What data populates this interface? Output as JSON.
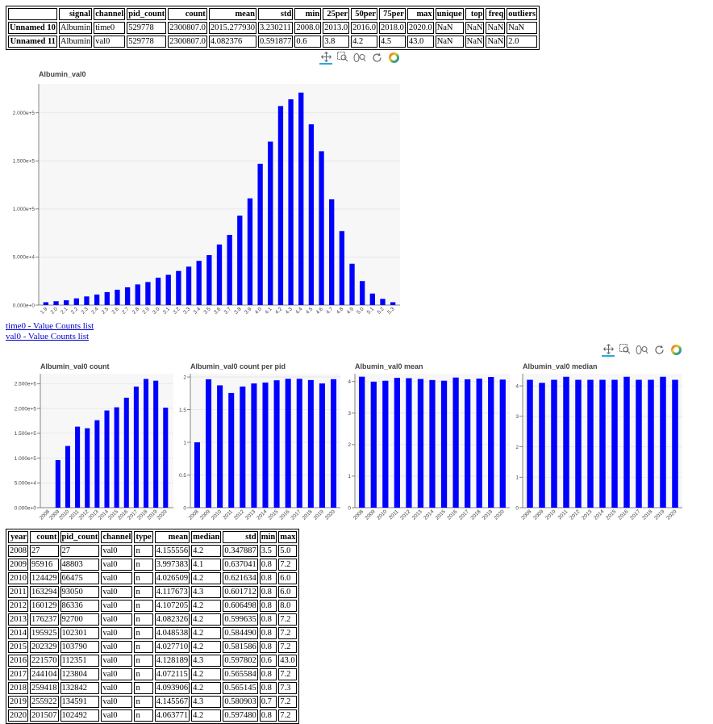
{
  "summary_table": {
    "columns": [
      "",
      "signal",
      "channel",
      "pid_count",
      "count",
      "mean",
      "std",
      "min",
      "25per",
      "50per",
      "75per",
      "max",
      "unique",
      "top",
      "freq",
      "outliers"
    ],
    "rows": [
      [
        "Unnamed 10",
        "Albumin",
        "time0",
        "529778",
        "2300807.0",
        "2015.277930",
        "3.230211",
        "2008.0",
        "2013.0",
        "2016.0",
        "2018.0",
        "2020.0",
        "NaN",
        "NaN",
        "NaN",
        "NaN"
      ],
      [
        "Unnamed 11",
        "Albumin",
        "val0",
        "529778",
        "2300807.0",
        "4.082376",
        "0.591877",
        "0.6",
        "3.8",
        "4.2",
        "4.5",
        "43.0",
        "NaN",
        "NaN",
        "NaN",
        "2.0"
      ]
    ]
  },
  "toolbar": {
    "tools": [
      "pan-icon",
      "box-zoom-icon",
      "wheel-zoom-icon",
      "reset-icon",
      "bokeh-logo-icon"
    ]
  },
  "links": {
    "time0": "time0 - Value Counts list",
    "val0": "val0 - Value Counts list"
  },
  "chart_data": [
    {
      "type": "bar",
      "title": "Albumin_val0",
      "categories": [
        "1.9",
        "2.0",
        "2.1",
        "2.2",
        "2.3",
        "2.4",
        "2.5",
        "2.6",
        "2.7",
        "2.8",
        "2.9",
        "3.0",
        "3.1",
        "3.2",
        "3.3",
        "3.4",
        "3.5",
        "3.6",
        "3.7",
        "3.8",
        "3.9",
        "4.0",
        "4.1",
        "4.2",
        "4.3",
        "4.4",
        "4.5",
        "4.6",
        "4.7",
        "4.8",
        "4.9",
        "5.0",
        "5.1",
        "5.2",
        "5.3"
      ],
      "values": [
        3000,
        4000,
        5000,
        7000,
        9000,
        11000,
        13500,
        16000,
        18500,
        21500,
        24000,
        28500,
        31500,
        35500,
        40000,
        46000,
        52000,
        63000,
        73000,
        93000,
        111000,
        147000,
        170000,
        207000,
        214000,
        221000,
        188000,
        160000,
        110000,
        77000,
        43000,
        25000,
        12000,
        6500,
        3000
      ],
      "ylim": [
        0,
        230000
      ],
      "yticks": [
        "0.000e+0",
        "5.000e+4",
        "1.000e+5",
        "1.500e+5",
        "2.000e+5"
      ],
      "grid": true
    },
    {
      "type": "bar",
      "title": "Albumin_val0  count",
      "categories": [
        "2008",
        "2009",
        "2010",
        "2011",
        "2012",
        "2013",
        "2014",
        "2015",
        "2016",
        "2017",
        "2018",
        "2019",
        "2020"
      ],
      "values": [
        27,
        95916,
        124429,
        163294,
        160129,
        176237,
        195925,
        202329,
        221570,
        244104,
        259418,
        255922,
        201507
      ],
      "ylim": [
        0,
        270000
      ],
      "yticks": [
        "0.000e+0",
        "5.000e+4",
        "1.000e+5",
        "1.500e+5",
        "2.000e+5",
        "2.500e+5"
      ],
      "grid": true
    },
    {
      "type": "bar",
      "title": "Albumin_val0  count per pid",
      "categories": [
        "2008",
        "2009",
        "2010",
        "2011",
        "2012",
        "2013",
        "2014",
        "2015",
        "2016",
        "2017",
        "2018",
        "2019",
        "2020"
      ],
      "values": [
        1.0,
        1.965,
        1.872,
        1.755,
        1.854,
        1.901,
        1.915,
        1.949,
        1.972,
        1.972,
        1.953,
        1.901,
        1.966
      ],
      "ylim": [
        0,
        2.05
      ],
      "yticks": [
        "0",
        "0.5",
        "1",
        "1.5",
        "2"
      ],
      "grid": true
    },
    {
      "type": "bar",
      "title": "Albumin_val0  mean",
      "categories": [
        "2008",
        "2009",
        "2010",
        "2011",
        "2012",
        "2013",
        "2014",
        "2015",
        "2016",
        "2017",
        "2018",
        "2019",
        "2020"
      ],
      "values": [
        4.155556,
        3.997383,
        4.026509,
        4.117673,
        4.107205,
        4.082326,
        4.048538,
        4.02771,
        4.128189,
        4.072115,
        4.093906,
        4.145567,
        4.063771
      ],
      "ylim": [
        0,
        4.25
      ],
      "yticks": [
        "0",
        "1",
        "2",
        "3",
        "4"
      ],
      "grid": true
    },
    {
      "type": "bar",
      "title": "Albumin_val0  median",
      "categories": [
        "2008",
        "2009",
        "2010",
        "2011",
        "2012",
        "2013",
        "2014",
        "2015",
        "2016",
        "2017",
        "2018",
        "2019",
        "2020"
      ],
      "values": [
        4.2,
        4.1,
        4.2,
        4.3,
        4.2,
        4.2,
        4.2,
        4.2,
        4.3,
        4.2,
        4.2,
        4.3,
        4.2
      ],
      "ylim": [
        0,
        4.4
      ],
      "yticks": [
        "0",
        "1",
        "2",
        "3",
        "4"
      ],
      "grid": true
    }
  ],
  "year_table": {
    "columns": [
      "year",
      "count",
      "pid_count",
      "channel",
      "type",
      "mean",
      "median",
      "std",
      "min",
      "max"
    ],
    "rows": [
      [
        "2008",
        "27",
        "27",
        "val0",
        "n",
        "4.155556",
        "4.2",
        "0.347887",
        "3.5",
        "5.0"
      ],
      [
        "2009",
        "95916",
        "48803",
        "val0",
        "n",
        "3.997383",
        "4.1",
        "0.637041",
        "0.8",
        "7.2"
      ],
      [
        "2010",
        "124429",
        "66475",
        "val0",
        "n",
        "4.026509",
        "4.2",
        "0.621634",
        "0.8",
        "6.0"
      ],
      [
        "2011",
        "163294",
        "93050",
        "val0",
        "n",
        "4.117673",
        "4.3",
        "0.601712",
        "0.8",
        "6.0"
      ],
      [
        "2012",
        "160129",
        "86336",
        "val0",
        "n",
        "4.107205",
        "4.2",
        "0.606498",
        "0.8",
        "8.0"
      ],
      [
        "2013",
        "176237",
        "92700",
        "val0",
        "n",
        "4.082326",
        "4.2",
        "0.599635",
        "0.8",
        "7.2"
      ],
      [
        "2014",
        "195925",
        "102301",
        "val0",
        "n",
        "4.048538",
        "4.2",
        "0.584490",
        "0.8",
        "7.2"
      ],
      [
        "2015",
        "202329",
        "103790",
        "val0",
        "n",
        "4.027710",
        "4.2",
        "0.581586",
        "0.8",
        "7.2"
      ],
      [
        "2016",
        "221570",
        "112351",
        "val0",
        "n",
        "4.128189",
        "4.3",
        "0.597802",
        "0.6",
        "43.0"
      ],
      [
        "2017",
        "244104",
        "123804",
        "val0",
        "n",
        "4.072115",
        "4.2",
        "0.565584",
        "0.8",
        "7.2"
      ],
      [
        "2018",
        "259418",
        "132842",
        "val0",
        "n",
        "4.093906",
        "4.2",
        "0.565145",
        "0.8",
        "7.3"
      ],
      [
        "2019",
        "255922",
        "134591",
        "val0",
        "n",
        "4.145567",
        "4.3",
        "0.580903",
        "0.7",
        "7.2"
      ],
      [
        "2020",
        "201507",
        "102492",
        "val0",
        "n",
        "4.063771",
        "4.2",
        "0.597480",
        "0.8",
        "7.2"
      ]
    ]
  },
  "colors": {
    "bar": "#0000ff",
    "plot_bg": "#f7f7f7",
    "grid": "#e5e5e5",
    "link": "#0000cc",
    "tool_active": "#26aae1"
  }
}
